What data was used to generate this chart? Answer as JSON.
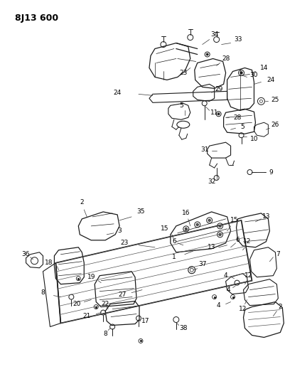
{
  "title": "8J13 600",
  "bg_color": "#ffffff",
  "line_color": "#1a1a1a",
  "text_color": "#000000",
  "figsize": [
    4.02,
    5.33
  ],
  "dpi": 100
}
